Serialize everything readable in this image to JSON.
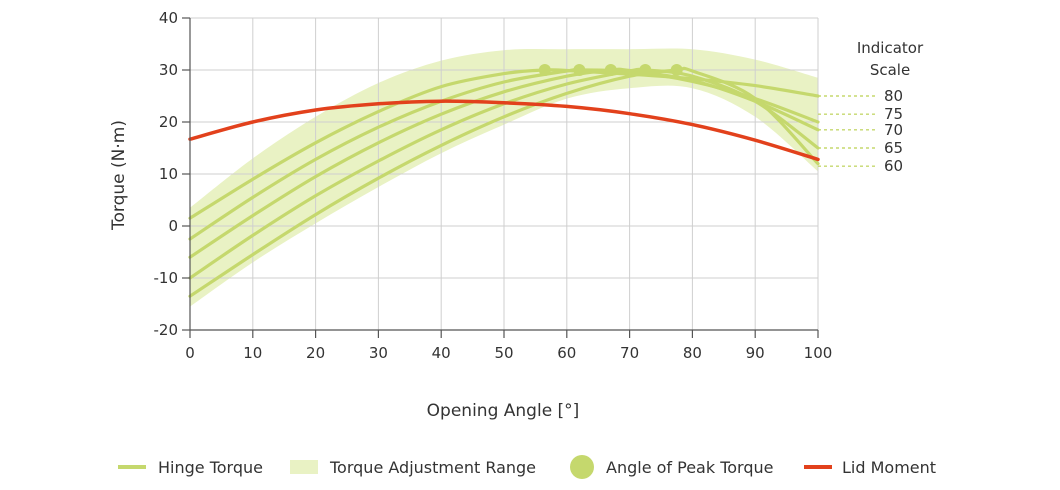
{
  "chart_data": {
    "type": "line",
    "xlabel": "Opening Angle [°]",
    "ylabel": "Torque (N·m)",
    "xlim": [
      0,
      100
    ],
    "ylim": [
      -20,
      40
    ],
    "xticks": [
      0,
      10,
      20,
      30,
      40,
      50,
      60,
      70,
      80,
      90,
      100
    ],
    "yticks": [
      -20,
      -10,
      0,
      10,
      20,
      30,
      40
    ],
    "grid": true,
    "colors": {
      "hinge": "#c5d86d",
      "range": "#e9f2c4",
      "peak": "#c5d86d",
      "lid": "#e2411c",
      "grid": "#cfcfcf",
      "indicator": "#c5d86d"
    },
    "hinge_curves": [
      {
        "indicator": "80",
        "x": [
          0,
          10,
          20,
          30,
          40,
          50,
          56.5,
          60,
          70,
          80,
          90,
          100
        ],
        "y": [
          1.5,
          9,
          16,
          22,
          26.8,
          29.3,
          30,
          29.9,
          29.2,
          28.3,
          27,
          25
        ]
      },
      {
        "indicator": "75",
        "x": [
          0,
          10,
          20,
          30,
          40,
          50,
          60,
          62,
          70,
          80,
          90,
          100
        ],
        "y": [
          -2.5,
          5.5,
          12.8,
          19,
          24,
          27.7,
          29.8,
          30,
          29.7,
          27.8,
          24.5,
          20
        ]
      },
      {
        "indicator": "70",
        "x": [
          0,
          10,
          20,
          30,
          40,
          50,
          60,
          67,
          70,
          80,
          90,
          100
        ],
        "y": [
          -6,
          2,
          9.5,
          16,
          21.5,
          25.8,
          28.8,
          30,
          29.9,
          28,
          24,
          18.5
        ]
      },
      {
        "indicator": "65",
        "x": [
          0,
          10,
          20,
          30,
          40,
          50,
          60,
          70,
          72.5,
          80,
          90,
          100
        ],
        "y": [
          -10,
          -1.8,
          5.8,
          12.5,
          18.5,
          23.5,
          27.3,
          29.8,
          30,
          28.8,
          24,
          15
        ]
      },
      {
        "indicator": "60",
        "x": [
          0,
          10,
          20,
          30,
          40,
          50,
          60,
          70,
          77.5,
          80,
          90,
          100
        ],
        "y": [
          -13.5,
          -5.5,
          2.2,
          9.2,
          15.5,
          21,
          25.5,
          28.8,
          30,
          29.8,
          24.5,
          12
        ]
      }
    ],
    "range_band": {
      "x": [
        0,
        10,
        20,
        30,
        40,
        50,
        60,
        70,
        80,
        90,
        100
      ],
      "upper": [
        3.5,
        13,
        21,
        27.5,
        31.8,
        33.8,
        34,
        34,
        34,
        32,
        28.5
      ],
      "lower": [
        -15.5,
        -7,
        0.5,
        7.5,
        14,
        19.5,
        24.5,
        26.5,
        26.5,
        21,
        10.5
      ]
    },
    "peak_points": {
      "x": [
        56.5,
        62,
        67,
        72.5,
        77.5
      ],
      "y": [
        30,
        30,
        30,
        30,
        30
      ]
    },
    "lid_moment": {
      "x": [
        0,
        10,
        20,
        30,
        40,
        50,
        60,
        70,
        80,
        90,
        100
      ],
      "y": [
        16.7,
        20,
        22.3,
        23.5,
        24,
        23.7,
        23,
        21.6,
        19.5,
        16.5,
        12.8
      ]
    },
    "indicator_scale": {
      "title_line1": "Indicator",
      "title_line2": "Scale",
      "labels": [
        "80",
        "75",
        "70",
        "65",
        "60"
      ],
      "y": [
        25,
        21.5,
        18.5,
        15,
        11.5
      ]
    },
    "legend": [
      {
        "key": "hinge",
        "label": "Hinge Torque",
        "swatch": "line"
      },
      {
        "key": "range",
        "label": "Torque Adjustment Range",
        "swatch": "band"
      },
      {
        "key": "peak",
        "label": "Angle of Peak Torque",
        "swatch": "dot"
      },
      {
        "key": "lid",
        "label": "Lid Moment",
        "swatch": "line"
      }
    ],
    "legend_placement": "bottom"
  }
}
